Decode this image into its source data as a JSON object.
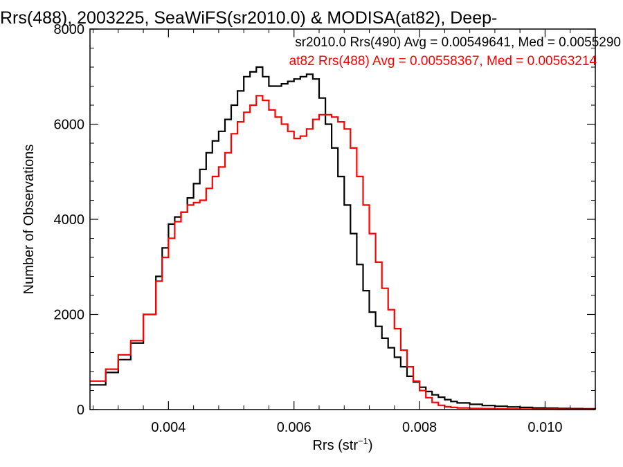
{
  "chart_data": {
    "type": "line",
    "title": "Rrs(488), 2003225, SeaWiFS(sr2010.0) & MODISA(at82), Deep-",
    "xlabel_main": "Rrs (str",
    "xlabel_sup": "−1",
    "xlabel_end": ")",
    "ylabel": "Number of Observations",
    "xlim": [
      0.00275,
      0.0108
    ],
    "ylim": [
      0,
      8000
    ],
    "xticks": [
      0.004,
      0.006,
      0.008,
      0.01
    ],
    "xtick_labels": [
      "0.004",
      "0.006",
      "0.008",
      "0.010"
    ],
    "yticks": [
      0,
      2000,
      4000,
      6000,
      8000
    ],
    "ytick_labels": [
      "0",
      "2000",
      "4000",
      "6000",
      "8000"
    ],
    "legend_placement": "top-right",
    "series": [
      {
        "name": "sr2010.0 Rrs(490) Avg = 0.00549641, Med = 0.0055290",
        "color": "#000000",
        "x": [
          0.00275,
          0.003,
          0.0032,
          0.0034,
          0.0036,
          0.0038,
          0.0039,
          0.004,
          0.0041,
          0.0042,
          0.0043,
          0.0044,
          0.0045,
          0.0046,
          0.0047,
          0.0048,
          0.0049,
          0.005,
          0.0051,
          0.0052,
          0.0053,
          0.0054,
          0.0055,
          0.0056,
          0.0057,
          0.0058,
          0.0059,
          0.006,
          0.0061,
          0.0062,
          0.0063,
          0.0064,
          0.0065,
          0.0066,
          0.0067,
          0.0068,
          0.0069,
          0.007,
          0.0071,
          0.0072,
          0.0073,
          0.0074,
          0.0075,
          0.0076,
          0.0077,
          0.0078,
          0.0079,
          0.008,
          0.0081,
          0.0082,
          0.0083,
          0.0084,
          0.0085,
          0.0086,
          0.0088,
          0.009,
          0.0092,
          0.0094,
          0.0096,
          0.0098,
          0.01,
          0.0102,
          0.0104,
          0.0106,
          0.0108
        ],
        "y": [
          520,
          780,
          1050,
          1400,
          2000,
          2800,
          3400,
          3900,
          4050,
          4150,
          4450,
          4750,
          5050,
          5400,
          5650,
          5850,
          6100,
          6400,
          6700,
          7000,
          7100,
          7200,
          7000,
          6800,
          6800,
          6850,
          6900,
          6950,
          7000,
          7050,
          6950,
          6550,
          6000,
          5500,
          4900,
          4300,
          3700,
          3050,
          2500,
          2050,
          1750,
          1500,
          1300,
          1100,
          900,
          700,
          580,
          470,
          380,
          310,
          260,
          210,
          170,
          140,
          110,
          85,
          70,
          55,
          45,
          35,
          30,
          25,
          20,
          18,
          15
        ]
      },
      {
        "name": "at82 Rrs(488) Avg = 0.00558367, Med = 0.00563214",
        "color": "#ff0000",
        "x": [
          0.00275,
          0.003,
          0.0032,
          0.0034,
          0.0036,
          0.0038,
          0.0039,
          0.004,
          0.0041,
          0.0042,
          0.0043,
          0.0044,
          0.0045,
          0.0046,
          0.0047,
          0.0048,
          0.0049,
          0.005,
          0.0051,
          0.0052,
          0.0053,
          0.0054,
          0.0055,
          0.0056,
          0.0057,
          0.0058,
          0.0059,
          0.006,
          0.0061,
          0.0062,
          0.0063,
          0.0064,
          0.0065,
          0.0066,
          0.0067,
          0.0068,
          0.0069,
          0.007,
          0.0071,
          0.0072,
          0.0073,
          0.0074,
          0.0075,
          0.0076,
          0.0077,
          0.0078,
          0.0079,
          0.008,
          0.0081,
          0.0082,
          0.0083,
          0.0084,
          0.0085,
          0.0086,
          0.0088,
          0.009,
          0.0092,
          0.0094,
          0.0096,
          0.0098,
          0.01,
          0.0102,
          0.0104,
          0.0106,
          0.0108
        ],
        "y": [
          600,
          850,
          1150,
          1450,
          2000,
          2700,
          3200,
          3600,
          3950,
          4150,
          4300,
          4350,
          4400,
          4650,
          4900,
          5100,
          5400,
          5800,
          6050,
          6250,
          6400,
          6600,
          6500,
          6300,
          6150,
          6000,
          5850,
          5700,
          5750,
          5900,
          6100,
          6200,
          6200,
          6150,
          6050,
          5900,
          5500,
          4900,
          4300,
          3700,
          3100,
          2550,
          2100,
          1700,
          1250,
          900,
          600,
          400,
          250,
          150,
          90,
          60,
          45,
          35,
          25,
          20,
          15,
          12,
          10,
          8,
          7,
          6,
          5,
          5,
          5
        ]
      }
    ]
  }
}
